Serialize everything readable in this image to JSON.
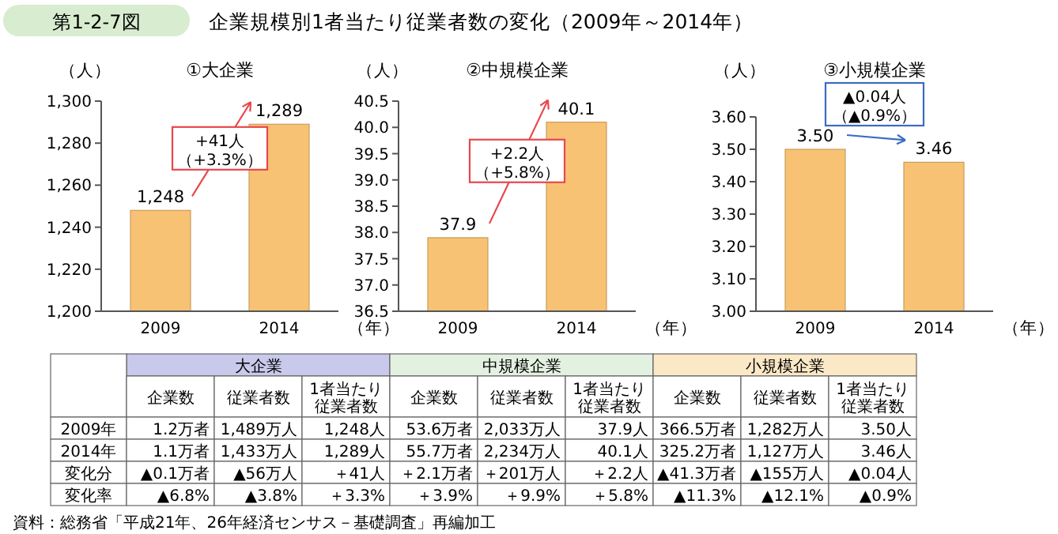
{
  "chart_data": [
    {
      "type": "other",
      "subtitle": "第1-2-7図",
      "title": "企業規模別1者当たり従業者数の変化（2009年～2014年）"
    },
    {
      "type": "bar",
      "title": "①大企業",
      "ylabel": "（人）",
      "xlabel": "（年）",
      "categories": [
        "2009",
        "2014"
      ],
      "values": [
        1248,
        1289
      ],
      "value_labels": [
        "1,248",
        "1,289"
      ],
      "color": "#f8c274",
      "ylim": [
        1200,
        1300
      ],
      "yticks": [
        {
          "value": 1200,
          "label": "1,200"
        },
        {
          "value": 1220,
          "label": "1,220"
        },
        {
          "value": 1240,
          "label": "1,240"
        },
        {
          "value": 1260,
          "label": "1,260"
        },
        {
          "value": 1280,
          "label": "1,280"
        },
        {
          "value": 1300,
          "label": "1,300"
        }
      ],
      "annotations": [
        "+41人",
        "（+3.3%）"
      ]
    },
    {
      "type": "bar",
      "title": "②中規模企業",
      "ylabel": "（人）",
      "xlabel": "（年）",
      "categories": [
        "2009",
        "2014"
      ],
      "values": [
        37.9,
        40.1
      ],
      "value_labels": [
        "37.9",
        "40.1"
      ],
      "color": "#f8c274",
      "ylim": [
        36.5,
        40.5
      ],
      "yticks": [
        36.5,
        {
          "value": 37,
          "label": "37.0"
        },
        37.5,
        {
          "value": 38,
          "label": "38.0"
        },
        38.5,
        {
          "value": 39,
          "label": "39.0"
        },
        39.5,
        {
          "value": 40,
          "label": "40.0"
        },
        40.5
      ],
      "annotations": [
        "+2.2人",
        "（+5.8%）"
      ]
    },
    {
      "type": "bar",
      "title": "③小規模企業",
      "ylabel": "（人）",
      "xlabel": "（年）",
      "categories": [
        "2009",
        "2014"
      ],
      "values": [
        3.5,
        3.46
      ],
      "value_labels": [
        "3.50",
        "3.46"
      ],
      "color": "#f8c274",
      "ylim": [
        3.0,
        3.6
      ],
      "yticks": [
        {
          "value": 3,
          "label": "3.00"
        },
        {
          "value": 3.1,
          "label": "3.10"
        },
        {
          "value": 3.2,
          "label": "3.20"
        },
        {
          "value": 3.3,
          "label": "3.30"
        },
        {
          "value": 3.4,
          "label": "3.40"
        },
        {
          "value": 3.5,
          "label": "3.50"
        },
        {
          "value": 3.6,
          "label": "3.60"
        }
      ],
      "annotations": [
        "▲0.04人",
        "（▲0.9%）"
      ]
    },
    {
      "type": "other",
      "categories": [
        "企業数",
        "従業者数",
        "1者当たり従業者数",
        "企業数",
        "従業者数",
        "1者当たり従業者数",
        "企業数",
        "従業者数",
        "1者当たり従業者数"
      ],
      "y_categories": [
        "2009年",
        "2014年",
        "変化分",
        "変化率"
      ],
      "cell_labels": [
        [
          "1.2万者",
          "1,489万人",
          "1,248人",
          "53.6万者",
          "2,033万人",
          "37.9人",
          "366.5万者",
          "1,282万人",
          "3.50人"
        ],
        [
          "1.1万者",
          "1,433万人",
          "1,289人",
          "55.7万者",
          "2,234万人",
          "40.1人",
          "325.2万者",
          "1,127万人",
          "3.46人"
        ],
        [
          "▲0.1万者",
          "▲56万人",
          "＋41人",
          "＋2.1万者",
          "＋201万人",
          "＋2.2人",
          "▲41.3万者",
          "▲155万人",
          "▲0.04人"
        ],
        [
          "▲6.8%",
          "▲3.8%",
          "＋3.3%",
          "＋3.9%",
          "＋9.9%",
          "＋5.8%",
          "▲11.3%",
          "▲12.1%",
          "▲0.9%"
        ]
      ],
      "annotations": [
        "大企業",
        "中規模企業",
        "小規模企業",
        "資料：総務省「平成21年、26年経済センサス－基礎調査」再編加工"
      ]
    }
  ]
}
